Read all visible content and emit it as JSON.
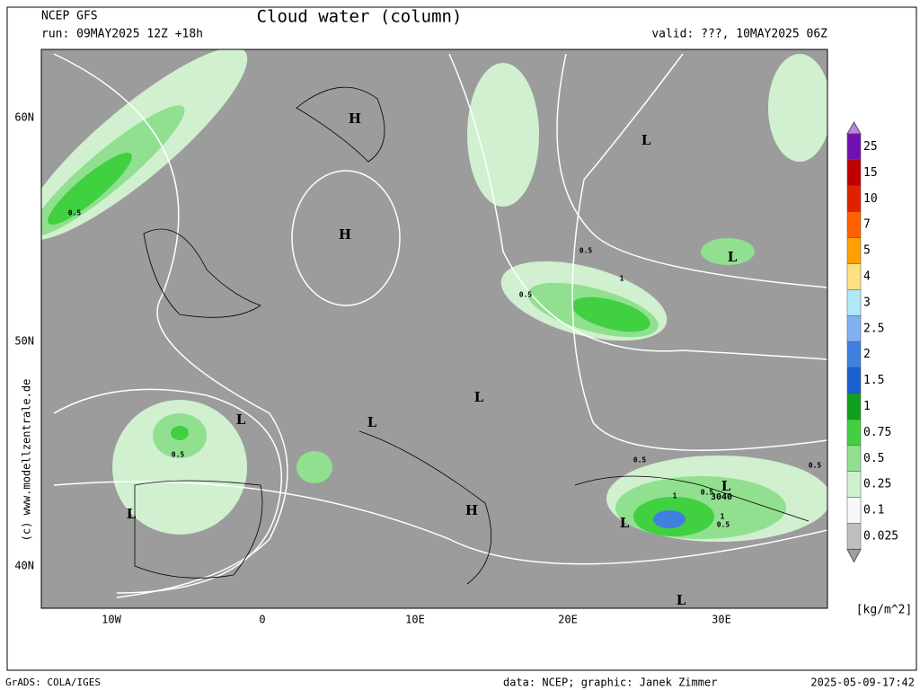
{
  "header": {
    "model": "NCEP GFS",
    "run": "run: 09MAY2025 12Z +18h",
    "title": "Cloud water (column)",
    "valid": "valid: ???, 10MAY2025 06Z"
  },
  "map": {
    "lat_labels": [
      "60N",
      "50N",
      "40N"
    ],
    "lon_labels": [
      "10W",
      "0",
      "10E",
      "20E",
      "30E"
    ],
    "centers": [
      "H",
      "H",
      "L",
      "L",
      "L",
      "L",
      "L",
      "L",
      "H",
      "L",
      "L",
      "L"
    ],
    "contour_labels": [
      "0.5",
      "0.5",
      "1",
      "0.5",
      "0.5",
      "0.5",
      "1",
      "0.5",
      "3040",
      "1",
      "0.5",
      "0.5"
    ]
  },
  "colorbar": {
    "levels": [
      "25",
      "15",
      "10",
      "7",
      "5",
      "4",
      "3",
      "2.5",
      "2",
      "1.5",
      "1",
      "0.75",
      "0.5",
      "0.25",
      "0.1",
      "0.025"
    ],
    "colors": [
      "#7010b0",
      "#c00000",
      "#e02000",
      "#ff6000",
      "#ffa000",
      "#ffe080",
      "#b0e8f8",
      "#80b0f0",
      "#4080e0",
      "#1a5fd0",
      "#10a020",
      "#40d040",
      "#90e090",
      "#d0f0d0",
      "#f8f8f8",
      "#c0c0c0"
    ],
    "top_color": "#c080e0",
    "bottom_color": "#a0a0a0",
    "unit": "[kg/m^2]"
  },
  "footer": {
    "software": "GrADS: COLA/IGES",
    "credits": "data: NCEP; graphic: Janek Zimmer",
    "timestamp": "2025-05-09-17:42",
    "website": "(c) www.modellzentrale.de"
  }
}
